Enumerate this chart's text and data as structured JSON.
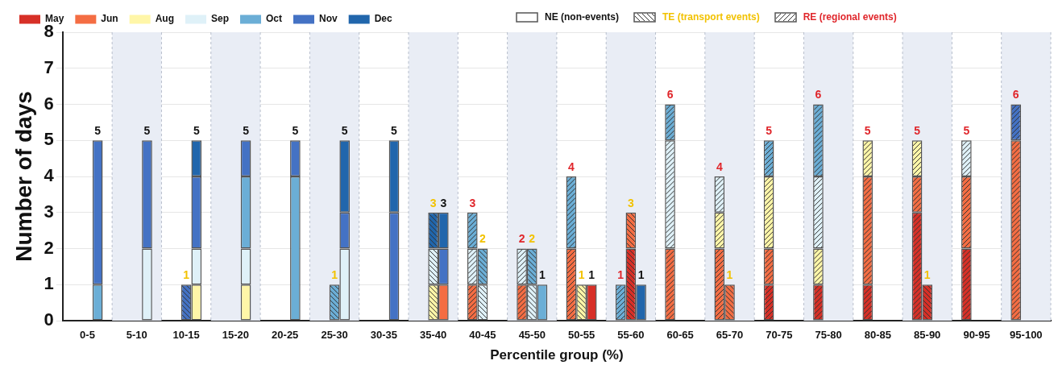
{
  "chart_data": {
    "type": "bar",
    "xlabel": "Percentile group (%)",
    "ylabel": "Number of days",
    "categories": [
      "0-5",
      "5-10",
      "10-15",
      "15-20",
      "20-25",
      "25-30",
      "30-35",
      "35-40",
      "40-45",
      "45-50",
      "50-55",
      "55-60",
      "60-65",
      "65-70",
      "70-75",
      "75-80",
      "80-85",
      "85-90",
      "90-95",
      "95-100"
    ],
    "ylim": [
      0,
      8
    ],
    "yticks": [
      0,
      1,
      2,
      3,
      4,
      5,
      6,
      7,
      8
    ],
    "grid": "y",
    "legend": "top",
    "annotations": [
      "NE (non-events)",
      "TE (transport events)",
      "RE (regional events)"
    ],
    "bands": [
      {
        "axis": "x",
        "from": "5-10",
        "to": "5-10"
      },
      {
        "axis": "x",
        "from": "15-20",
        "to": "15-20"
      },
      {
        "axis": "x",
        "from": "25-30",
        "to": "25-30"
      },
      {
        "axis": "x",
        "from": "35-40",
        "to": "35-40"
      },
      {
        "axis": "x",
        "from": "45-50",
        "to": "45-50"
      },
      {
        "axis": "x",
        "from": "55-60",
        "to": "55-60"
      },
      {
        "axis": "x",
        "from": "65-70",
        "to": "65-70"
      },
      {
        "axis": "x",
        "from": "75-80",
        "to": "75-80"
      },
      {
        "axis": "x",
        "from": "85-90",
        "to": "85-90"
      },
      {
        "axis": "x",
        "from": "95-100",
        "to": "95-100"
      }
    ],
    "series": [
      {
        "name": "May",
        "color": "#d73027",
        "values": [
          null,
          null,
          null,
          null,
          null,
          null,
          null,
          null,
          null,
          null,
          null,
          null,
          null,
          null,
          1,
          1,
          1,
          3,
          2,
          null
        ],
        "base": [
          null,
          null,
          null,
          null,
          null,
          null,
          null,
          null,
          null,
          null,
          null,
          null,
          null,
          null,
          0,
          0,
          0,
          0,
          0,
          null
        ]
      },
      {
        "name": "Jun",
        "color": "#f46d43",
        "values": [
          null,
          null,
          null,
          null,
          null,
          null,
          null,
          null,
          1,
          1,
          2,
          null,
          2,
          2,
          1,
          null,
          3,
          1,
          2,
          5
        ],
        "base": [
          null,
          null,
          null,
          null,
          null,
          null,
          null,
          null,
          0,
          0,
          0,
          null,
          0,
          0,
          1,
          null,
          1,
          3,
          2,
          0
        ]
      },
      {
        "name": "Aug",
        "color": "#fff6a8",
        "values": [
          null,
          null,
          null,
          null,
          null,
          null,
          null,
          null,
          null,
          null,
          null,
          null,
          null,
          1,
          2,
          1,
          1,
          1,
          null,
          null
        ],
        "base": [
          null,
          null,
          null,
          null,
          null,
          null,
          null,
          null,
          null,
          null,
          null,
          null,
          null,
          2,
          2,
          1,
          4,
          4,
          null,
          null
        ],
        "value_labels": [
          null,
          null,
          null,
          null,
          null,
          null,
          null,
          null,
          null,
          null,
          null,
          null,
          null,
          null,
          null,
          null,
          "5",
          "5",
          null,
          null
        ]
      },
      {
        "name": "Sep",
        "color": "#dff1f8",
        "values": [
          null,
          null,
          null,
          null,
          null,
          null,
          null,
          null,
          1,
          1,
          null,
          null,
          3,
          1,
          null,
          2,
          null,
          null,
          1,
          null
        ],
        "base": [
          null,
          null,
          null,
          null,
          null,
          null,
          null,
          null,
          1,
          1,
          null,
          null,
          2,
          3,
          null,
          2,
          null,
          null,
          4,
          null
        ],
        "value_labels": [
          null,
          null,
          null,
          null,
          null,
          null,
          null,
          null,
          null,
          "2",
          null,
          null,
          null,
          "4",
          null,
          null,
          null,
          null,
          "5",
          null
        ]
      },
      {
        "name": "Oct",
        "color": "#6baed6",
        "values": [
          null,
          null,
          null,
          null,
          null,
          null,
          null,
          null,
          1,
          null,
          2,
          1,
          1,
          null,
          1,
          2,
          null,
          null,
          null,
          null
        ],
        "base": [
          null,
          null,
          null,
          null,
          null,
          null,
          null,
          null,
          2,
          null,
          2,
          0,
          5,
          null,
          4,
          4,
          null,
          null,
          null,
          null
        ],
        "value_labels": [
          null,
          null,
          null,
          null,
          null,
          null,
          null,
          null,
          "3",
          null,
          "4",
          "1",
          "6",
          null,
          "5",
          "6",
          null,
          null,
          null,
          null
        ]
      },
      {
        "name": "Nov",
        "color": "#4472c4",
        "values": [
          null,
          null,
          null,
          null,
          null,
          null,
          null,
          null,
          null,
          null,
          null,
          null,
          null,
          null,
          null,
          null,
          null,
          null,
          null,
          1
        ],
        "base": [
          null,
          null,
          null,
          null,
          null,
          null,
          null,
          null,
          null,
          null,
          null,
          null,
          null,
          null,
          null,
          null,
          null,
          null,
          null,
          5
        ],
        "value_labels": [
          null,
          null,
          null,
          null,
          null,
          null,
          null,
          null,
          null,
          null,
          null,
          null,
          null,
          null,
          null,
          null,
          null,
          null,
          null,
          "6"
        ]
      },
      {
        "name": null,
        "color": "#d73027",
        "values": [
          null,
          null,
          null,
          null,
          null,
          null,
          null,
          null,
          null,
          null,
          null,
          2,
          null,
          null,
          null,
          null,
          null,
          1,
          null,
          null
        ],
        "base": [
          null,
          null,
          null,
          null,
          null,
          null,
          null,
          null,
          null,
          null,
          null,
          0,
          null,
          null,
          null,
          null,
          null,
          0,
          null,
          null
        ],
        "value_labels": [
          null,
          null,
          null,
          null,
          null,
          null,
          null,
          null,
          null,
          null,
          null,
          null,
          null,
          null,
          null,
          null,
          null,
          "1",
          null,
          null
        ]
      },
      {
        "name": null,
        "color": "#f46d43",
        "values": [
          null,
          null,
          null,
          null,
          null,
          null,
          null,
          null,
          null,
          null,
          null,
          1,
          null,
          1,
          null,
          null,
          null,
          null,
          null,
          null
        ],
        "base": [
          null,
          null,
          null,
          null,
          null,
          null,
          null,
          null,
          null,
          null,
          null,
          2,
          null,
          0,
          null,
          null,
          null,
          null,
          null,
          null
        ],
        "value_labels": [
          null,
          null,
          null,
          null,
          null,
          null,
          null,
          null,
          null,
          null,
          null,
          "3",
          null,
          "1",
          null,
          null,
          null,
          null,
          null,
          null
        ]
      },
      {
        "name": null,
        "color": "#fff6a8",
        "values": [
          null,
          null,
          null,
          null,
          null,
          null,
          null,
          1,
          null,
          null,
          1,
          null,
          null,
          null,
          null,
          null,
          null,
          null,
          null,
          null
        ],
        "base": [
          null,
          null,
          null,
          null,
          null,
          null,
          null,
          0,
          null,
          null,
          0,
          null,
          null,
          null,
          null,
          null,
          null,
          null,
          null,
          null
        ],
        "value_labels": [
          null,
          null,
          null,
          null,
          null,
          null,
          null,
          null,
          null,
          null,
          "1",
          null,
          null,
          null,
          null,
          null,
          null,
          null,
          null,
          null
        ]
      },
      {
        "name": null,
        "color": "#dff1f8",
        "values": [
          null,
          null,
          null,
          null,
          null,
          null,
          null,
          1,
          1,
          1,
          null,
          null,
          null,
          null,
          null,
          null,
          null,
          null,
          null,
          null
        ],
        "base": [
          null,
          null,
          null,
          null,
          null,
          null,
          null,
          1,
          0,
          0,
          null,
          null,
          null,
          null,
          null,
          null,
          null,
          null,
          null,
          null
        ]
      },
      {
        "name": null,
        "color": "#6baed6",
        "values": [
          null,
          null,
          null,
          null,
          null,
          1,
          null,
          null,
          1,
          1,
          null,
          null,
          null,
          null,
          null,
          null,
          null,
          null,
          null,
          null
        ],
        "base": [
          null,
          null,
          null,
          null,
          null,
          0,
          null,
          null,
          1,
          1,
          null,
          null,
          null,
          null,
          null,
          null,
          null,
          null,
          null,
          null
        ],
        "value_labels": [
          null,
          null,
          null,
          null,
          null,
          "1",
          null,
          null,
          "2",
          "2",
          null,
          null,
          null,
          null,
          null,
          null,
          null,
          null,
          null,
          null
        ]
      },
      {
        "name": null,
        "color": "#4472c4",
        "values": [
          null,
          null,
          1,
          null,
          null,
          null,
          null,
          null,
          null,
          null,
          null,
          null,
          null,
          null,
          null,
          null,
          null,
          null,
          null,
          null
        ],
        "base": [
          null,
          null,
          0,
          null,
          null,
          null,
          null,
          null,
          null,
          null,
          null,
          null,
          null,
          null,
          null,
          null,
          null,
          null,
          null,
          null
        ],
        "value_labels": [
          null,
          null,
          "1",
          null,
          null,
          null,
          null,
          null,
          null,
          null,
          null,
          null,
          null,
          null,
          null,
          null,
          null,
          null,
          null,
          null
        ]
      },
      {
        "name": "Dec",
        "color": "#2166ac",
        "values": [
          null,
          null,
          null,
          null,
          null,
          null,
          null,
          1,
          null,
          null,
          null,
          null,
          null,
          null,
          null,
          null,
          null,
          null,
          null,
          null
        ],
        "base": [
          null,
          null,
          null,
          null,
          null,
          null,
          null,
          2,
          null,
          null,
          null,
          null,
          null,
          null,
          null,
          null,
          null,
          null,
          null,
          null
        ],
        "value_labels": [
          null,
          null,
          null,
          null,
          null,
          null,
          null,
          "3",
          null,
          null,
          null,
          null,
          null,
          null,
          null,
          null,
          null,
          null,
          null,
          null
        ]
      },
      {
        "name": null,
        "color": "#d73027",
        "values": [
          null,
          null,
          null,
          null,
          null,
          null,
          null,
          null,
          null,
          null,
          1,
          null,
          null,
          null,
          null,
          null,
          null,
          null,
          null,
          null
        ],
        "base": [
          null,
          null,
          null,
          null,
          null,
          null,
          null,
          null,
          null,
          null,
          0,
          null,
          null,
          null,
          null,
          null,
          null,
          null,
          null,
          null
        ],
        "value_labels": [
          null,
          null,
          null,
          null,
          null,
          null,
          null,
          null,
          null,
          null,
          "1",
          null,
          null,
          null,
          null,
          null,
          null,
          null,
          null,
          null
        ]
      },
      {
        "name": null,
        "color": "#f46d43",
        "values": [
          null,
          null,
          null,
          null,
          null,
          null,
          null,
          1,
          null,
          null,
          null,
          null,
          null,
          null,
          null,
          null,
          null,
          null,
          null,
          null
        ],
        "base": [
          null,
          null,
          null,
          null,
          null,
          null,
          null,
          0,
          null,
          null,
          null,
          null,
          null,
          null,
          null,
          null,
          null,
          null,
          null,
          null
        ]
      },
      {
        "name": null,
        "color": "#fff6a8",
        "values": [
          null,
          null,
          1,
          1,
          null,
          null,
          null,
          null,
          null,
          null,
          null,
          null,
          null,
          null,
          null,
          null,
          null,
          null,
          null,
          null
        ],
        "base": [
          null,
          null,
          0,
          0,
          null,
          null,
          null,
          null,
          null,
          null,
          null,
          null,
          null,
          null,
          null,
          null,
          null,
          null,
          null,
          null
        ]
      },
      {
        "name": null,
        "color": "#dff1f8",
        "values": [
          null,
          2,
          1,
          1,
          null,
          2,
          null,
          null,
          null,
          null,
          null,
          null,
          null,
          null,
          null,
          null,
          null,
          null,
          null,
          null
        ],
        "base": [
          null,
          0,
          1,
          1,
          null,
          0,
          null,
          null,
          null,
          null,
          null,
          null,
          null,
          null,
          null,
          null,
          null,
          null,
          null,
          null
        ]
      },
      {
        "name": null,
        "color": "#6baed6",
        "values": [
          1,
          null,
          null,
          2,
          4,
          null,
          null,
          null,
          null,
          1,
          null,
          null,
          null,
          null,
          null,
          null,
          null,
          null,
          null,
          null
        ],
        "base": [
          0,
          null,
          null,
          2,
          0,
          null,
          null,
          null,
          null,
          0,
          null,
          null,
          null,
          null,
          null,
          null,
          null,
          null,
          null,
          null
        ],
        "value_labels": [
          null,
          null,
          null,
          null,
          null,
          null,
          null,
          null,
          null,
          "1",
          null,
          null,
          null,
          null,
          null,
          null,
          null,
          null,
          null,
          null
        ]
      },
      {
        "name": null,
        "color": "#4472c4",
        "values": [
          4,
          3,
          2,
          1,
          1,
          1,
          3,
          1,
          null,
          null,
          null,
          null,
          null,
          null,
          null,
          null,
          null,
          null,
          null,
          null
        ],
        "base": [
          1,
          2,
          2,
          4,
          4,
          2,
          0,
          1,
          null,
          null,
          null,
          null,
          null,
          null,
          null,
          null,
          null,
          null,
          null,
          null
        ],
        "value_labels": [
          "5",
          "5",
          null,
          "5",
          "5",
          null,
          null,
          null,
          null,
          null,
          null,
          null,
          null,
          null,
          null,
          null,
          null,
          null,
          null,
          null
        ]
      },
      {
        "name": null,
        "color": "#2166ac",
        "values": [
          null,
          null,
          1,
          null,
          null,
          2,
          2,
          1,
          null,
          null,
          null,
          1,
          null,
          null,
          null,
          null,
          null,
          null,
          null,
          null
        ],
        "base": [
          null,
          null,
          4,
          null,
          null,
          3,
          3,
          2,
          null,
          null,
          null,
          0,
          null,
          null,
          null,
          null,
          null,
          null,
          null,
          null
        ],
        "value_labels": [
          null,
          null,
          "5",
          null,
          null,
          "5",
          "5",
          "3",
          null,
          null,
          null,
          "1",
          null,
          null,
          null,
          null,
          null,
          null,
          null,
          null
        ]
      }
    ]
  }
}
